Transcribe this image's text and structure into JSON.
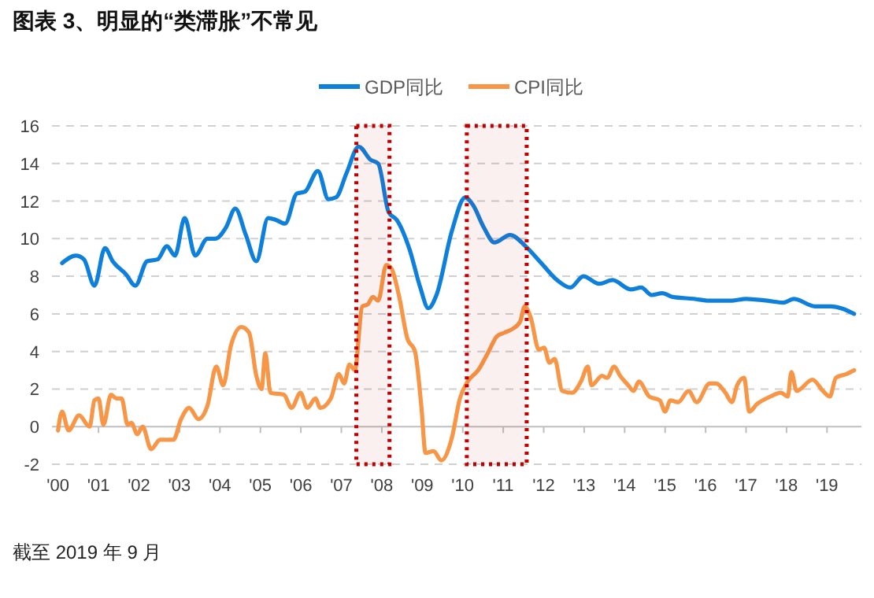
{
  "chart_data": {
    "type": "line",
    "title": "图表 3、明显的“类滞胀”不常见",
    "legend": "top",
    "grid": "y",
    "line_style": "solid",
    "marker": "none",
    "xlim": [
      1999.85,
      2019.85
    ],
    "xticks": [
      {
        "value": 2000,
        "label": "'00"
      },
      {
        "value": 2001,
        "label": "'01"
      },
      {
        "value": 2002,
        "label": "'02"
      },
      {
        "value": 2003,
        "label": "'03"
      },
      {
        "value": 2004,
        "label": "'04"
      },
      {
        "value": 2005,
        "label": "'05"
      },
      {
        "value": 2006,
        "label": "'06"
      },
      {
        "value": 2007,
        "label": "'07"
      },
      {
        "value": 2008,
        "label": "'08"
      },
      {
        "value": 2009,
        "label": "'09"
      },
      {
        "value": 2010,
        "label": "'10"
      },
      {
        "value": 2011,
        "label": "'11"
      },
      {
        "value": 2012,
        "label": "'12"
      },
      {
        "value": 2013,
        "label": "'13"
      },
      {
        "value": 2014,
        "label": "'14"
      },
      {
        "value": 2015,
        "label": "'15"
      },
      {
        "value": 2016,
        "label": "'16"
      },
      {
        "value": 2017,
        "label": "'17"
      },
      {
        "value": 2018,
        "label": "'18"
      },
      {
        "value": 2019,
        "label": "'19"
      }
    ],
    "ylim": [
      -2,
      16
    ],
    "yticks": [
      -2,
      0,
      2,
      4,
      6,
      8,
      10,
      12,
      14,
      16
    ],
    "series": [
      {
        "name": "GDP同比",
        "color": "#0f7fdc",
        "x": [
          2000.1,
          2000.44,
          2000.64,
          2000.9,
          2001.16,
          2001.35,
          2001.68,
          2001.91,
          2002.2,
          2002.46,
          2002.69,
          2002.89,
          2003.13,
          2003.39,
          2003.69,
          2003.89,
          2004.15,
          2004.38,
          2004.64,
          2004.9,
          2005.19,
          2005.38,
          2005.61,
          2005.9,
          2006.1,
          2006.42,
          2006.68,
          2006.87,
          2007.13,
          2007.43,
          2007.72,
          2007.91,
          2008.17,
          2008.37,
          2008.69,
          2008.95,
          2009.15,
          2009.35,
          2009.73,
          2010.06,
          2010.25,
          2010.52,
          2010.78,
          2011.17,
          2011.55,
          2011.94,
          2012.33,
          2012.66,
          2012.98,
          2013.37,
          2013.7,
          2014.15,
          2014.41,
          2014.67,
          2014.93,
          2015.19,
          2015.71,
          2016.1,
          2016.62,
          2017.0,
          2017.53,
          2017.92,
          2018.18,
          2018.7,
          2019.09,
          2019.67
        ],
        "values": [
          8.7,
          9.1,
          8.9,
          7.5,
          9.5,
          8.8,
          8.1,
          7.5,
          8.8,
          8.9,
          9.6,
          9.1,
          11.1,
          9.1,
          10.0,
          10.0,
          10.6,
          11.6,
          10.2,
          8.8,
          11.1,
          11.0,
          10.8,
          12.4,
          12.5,
          13.6,
          12.1,
          12.2,
          13.5,
          14.9,
          14.2,
          14.0,
          11.4,
          11.0,
          9.4,
          7.4,
          6.3,
          7.0,
          10.4,
          12.2,
          11.8,
          10.6,
          9.8,
          10.2,
          9.6,
          8.7,
          7.8,
          7.4,
          8.0,
          7.6,
          7.8,
          7.3,
          7.4,
          7.0,
          7.1,
          6.9,
          6.8,
          6.7,
          6.7,
          6.8,
          6.7,
          6.6,
          6.8,
          6.4,
          6.4,
          6.0
        ]
      },
      {
        "name": "CPI同比",
        "color": "#f79646",
        "x": [
          2000.0,
          2000.1,
          2000.26,
          2000.52,
          2000.78,
          2000.9,
          2001.0,
          2001.12,
          2001.31,
          2001.44,
          2001.57,
          2001.72,
          2001.81,
          2001.96,
          2002.09,
          2002.3,
          2002.52,
          2002.72,
          2002.85,
          2003.04,
          2003.24,
          2003.47,
          2003.69,
          2003.91,
          2004.08,
          2004.27,
          2004.53,
          2004.72,
          2004.9,
          2005.03,
          2005.12,
          2005.25,
          2005.58,
          2005.77,
          2005.99,
          2006.16,
          2006.36,
          2006.48,
          2006.74,
          2006.94,
          2007.07,
          2007.2,
          2007.33,
          2007.52,
          2007.65,
          2007.78,
          2007.91,
          2008.11,
          2008.24,
          2008.43,
          2008.63,
          2008.82,
          2008.98,
          2009.08,
          2009.28,
          2009.47,
          2009.73,
          2009.93,
          2010.12,
          2010.38,
          2010.64,
          2010.84,
          2011.03,
          2011.23,
          2011.42,
          2011.53,
          2011.68,
          2011.88,
          2012.01,
          2012.14,
          2012.27,
          2012.46,
          2012.7,
          2012.92,
          2013.09,
          2013.18,
          2013.44,
          2013.57,
          2013.74,
          2013.89,
          2014.09,
          2014.22,
          2014.35,
          2014.61,
          2014.87,
          2015.0,
          2015.13,
          2015.32,
          2015.58,
          2015.78,
          2016.1,
          2016.26,
          2016.49,
          2016.65,
          2016.78,
          2016.95,
          2017.08,
          2017.27,
          2017.6,
          2017.86,
          2018.03,
          2018.12,
          2018.25,
          2018.64,
          2018.9,
          2019.07,
          2019.22,
          2019.48,
          2019.67
        ],
        "values": [
          -0.2,
          0.8,
          -0.2,
          0.6,
          0.0,
          1.4,
          1.5,
          0.1,
          1.7,
          1.5,
          1.5,
          0.1,
          0.2,
          -0.4,
          0.0,
          -1.2,
          -0.7,
          -0.7,
          -0.7,
          0.4,
          1.0,
          0.4,
          1.1,
          3.2,
          2.2,
          4.3,
          5.3,
          5.0,
          2.7,
          2.0,
          3.9,
          1.8,
          1.7,
          1.0,
          1.8,
          1.0,
          1.5,
          1.0,
          1.5,
          2.8,
          2.3,
          3.3,
          3.0,
          6.4,
          6.5,
          6.9,
          6.7,
          8.6,
          8.4,
          6.9,
          4.7,
          4.0,
          1.0,
          -1.4,
          -1.3,
          -1.8,
          -0.6,
          1.5,
          2.4,
          3.0,
          4.0,
          4.8,
          5.0,
          5.2,
          5.6,
          6.4,
          5.8,
          4.1,
          4.2,
          3.4,
          3.6,
          1.9,
          1.8,
          2.4,
          3.2,
          2.2,
          2.7,
          2.6,
          3.2,
          2.7,
          2.2,
          1.9,
          2.4,
          1.6,
          1.4,
          0.8,
          1.4,
          1.3,
          1.9,
          1.3,
          2.3,
          2.3,
          1.8,
          1.3,
          2.2,
          2.6,
          0.8,
          1.2,
          1.6,
          1.8,
          1.6,
          2.9,
          1.9,
          2.5,
          1.9,
          1.6,
          2.6,
          2.8,
          3.0
        ]
      }
    ],
    "bands": [
      {
        "axis": "x",
        "from": 2007.37,
        "to": 2008.19,
        "color": "#c00000"
      },
      {
        "axis": "x",
        "from": 2010.1,
        "to": 2011.58,
        "color": "#c00000"
      }
    ],
    "annotations": [
      "截至 2019 年 9 月"
    ]
  }
}
